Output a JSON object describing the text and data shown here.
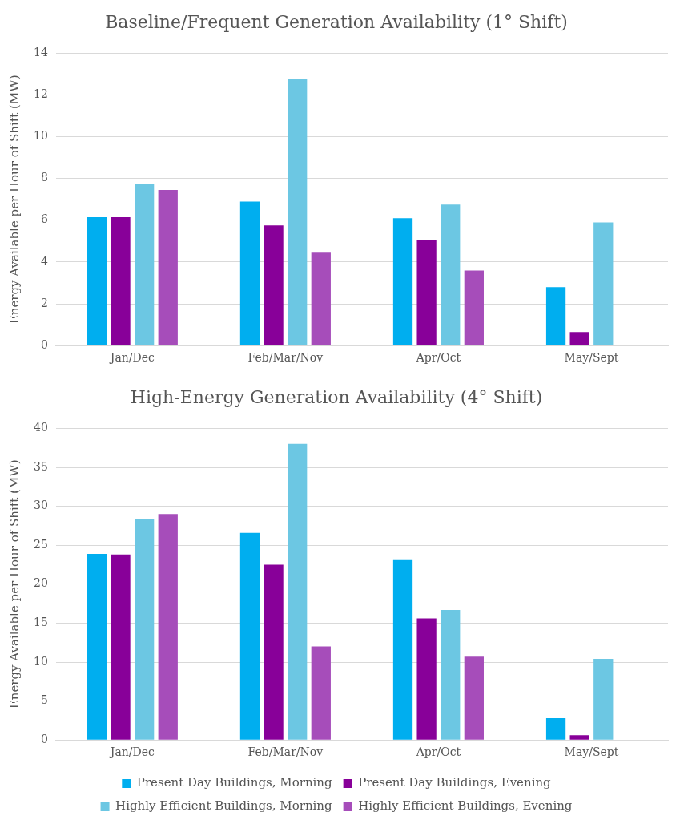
{
  "chart_data": [
    {
      "type": "bar",
      "title": "Baseline/Frequent Generation Availability (1° Shift)",
      "ylabel": "Energy Available per Hour of Shift (MW)",
      "categories": [
        "Jan/Dec",
        "Feb/Mar/Nov",
        "Apr/Oct",
        "May/Sept"
      ],
      "ylim": [
        0,
        14
      ],
      "yticks": [
        0,
        2,
        4,
        6,
        8,
        10,
        12,
        14
      ],
      "grid": "y",
      "legend": false,
      "series": [
        {
          "color": "#00aeef",
          "values": [
            6.15,
            6.9,
            6.1,
            2.8
          ]
        },
        {
          "color": "#880099",
          "values": [
            6.15,
            5.75,
            5.05,
            0.65
          ]
        },
        {
          "color": "#6cc7e3",
          "values": [
            7.75,
            12.75,
            6.75,
            5.9
          ]
        },
        {
          "color": "#a64dba",
          "values": [
            7.45,
            4.45,
            3.6,
            null
          ]
        }
      ]
    },
    {
      "type": "bar",
      "title": "High-Energy Generation Availability (4° Shift)",
      "ylabel": "Energy Available per Hour of Shift (MW)",
      "categories": [
        "Jan/Dec",
        "Feb/Mar/Nov",
        "Apr/Oct",
        "May/Sept"
      ],
      "ylim": [
        0,
        40
      ],
      "yticks": [
        0,
        5,
        10,
        15,
        20,
        25,
        30,
        35,
        40
      ],
      "grid": "y",
      "legend": "bottom",
      "series": [
        {
          "name": "Present Day Buildings, Morning",
          "color": "#00aeef",
          "values": [
            23.9,
            26.6,
            23.1,
            2.8
          ]
        },
        {
          "name": "Present Day Buildings, Evening",
          "color": "#880099",
          "values": [
            23.8,
            22.5,
            15.6,
            0.6
          ]
        },
        {
          "name": "Highly Efficient Buildings, Morning",
          "color": "#6cc7e3",
          "values": [
            28.3,
            38.0,
            16.7,
            10.4
          ]
        },
        {
          "name": "Highly Efficient Buildings, Evening",
          "color": "#a64dba",
          "values": [
            29.0,
            12.0,
            10.7,
            null
          ]
        }
      ]
    }
  ]
}
